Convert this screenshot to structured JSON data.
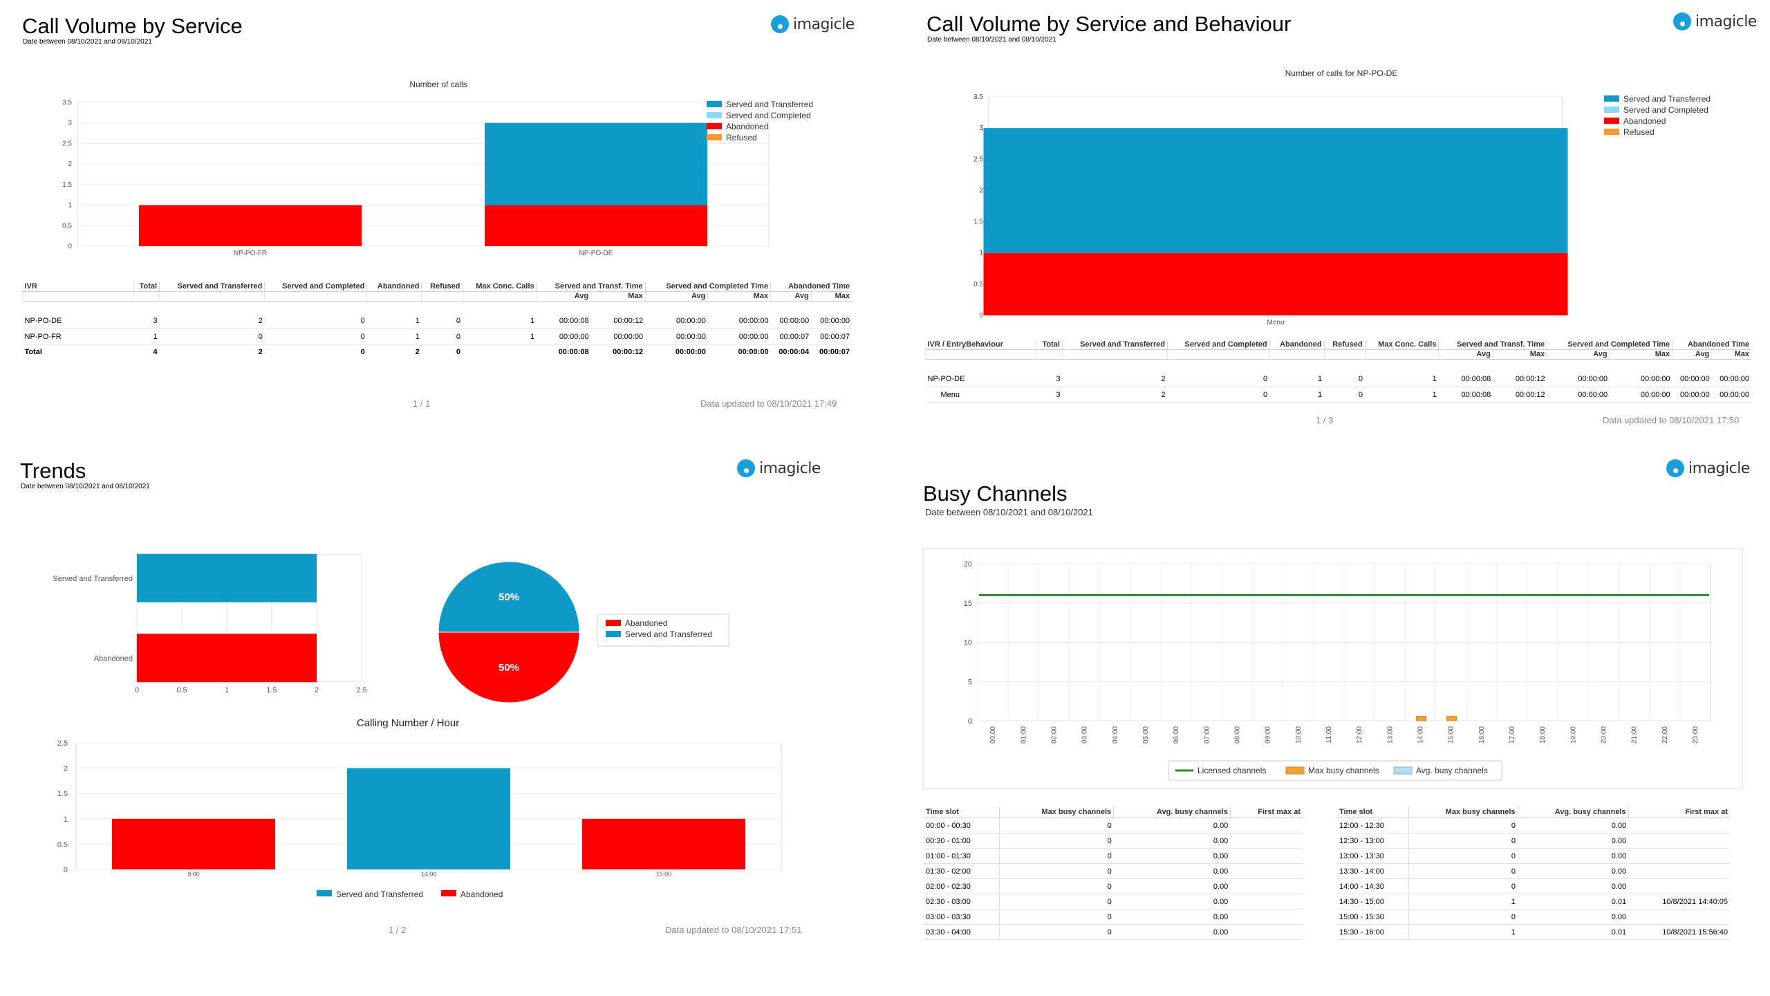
{
  "brand": "imagicle",
  "colors": {
    "served_transferred": "#0e99c7",
    "served_completed": "#8dd8f3",
    "abandoned": "#ff0000",
    "refused": "#ff9a2a",
    "licensed": "#228b22",
    "max_busy": "#f5a033",
    "avg_busy": "#b9dcf5"
  },
  "p1": {
    "title": "Call Volume by Service",
    "subtitle": "Date between 08/10/2021 and 08/10/2021",
    "legend": [
      "Served and Transferred",
      "Served and Completed",
      "Abandoned",
      "Refused"
    ],
    "table": {
      "headers": [
        "IVR",
        "Total",
        "Served and Transferred",
        "Served and Completed",
        "Abandoned",
        "Refused",
        "Max Conc. Calls",
        "Served and Transf. Time",
        "Served and Completed Time",
        "Abandoned Time"
      ],
      "sub": [
        "Avg",
        "Max",
        "Avg",
        "Max",
        "Avg",
        "Max"
      ],
      "rows": [
        [
          "NP-PO-DE",
          "3",
          "2",
          "0",
          "1",
          "0",
          "1",
          "00:00:08",
          "00:00:12",
          "00:00:00",
          "00:00:00",
          "00:00:00",
          "00:00:00"
        ],
        [
          "NP-PO-FR",
          "1",
          "0",
          "0",
          "1",
          "0",
          "1",
          "00:00:00",
          "00:00:00",
          "00:00:00",
          "00:00:00",
          "00:00:07",
          "00:00:07"
        ],
        [
          "Total",
          "4",
          "2",
          "0",
          "2",
          "0",
          "",
          "00:00:08",
          "00:00:12",
          "00:00:00",
          "00:00:00",
          "00:00:04",
          "00:00:07"
        ]
      ]
    },
    "page": "1 / 1",
    "updated": "Data updated to 08/10/2021 17:49"
  },
  "p2": {
    "title": "Call Volume by Service and Behaviour",
    "subtitle": "Date between 08/10/2021 and 08/10/2021",
    "legend": [
      "Served and Transferred",
      "Served and Completed",
      "Abandoned",
      "Refused"
    ],
    "table": {
      "headers": [
        "IVR / EntryBehaviour",
        "Total",
        "Served and Transferred",
        "Served and Completed",
        "Abandoned",
        "Refused",
        "Max Conc. Calls",
        "Served and Transf. Time",
        "Served and Completed Time",
        "Abandoned Time"
      ],
      "sub": [
        "Avg",
        "Max",
        "Avg",
        "Max",
        "Avg",
        "Max"
      ],
      "rows": [
        [
          "NP-PO-DE",
          "3",
          "2",
          "0",
          "1",
          "0",
          "1",
          "00:00:08",
          "00:00:12",
          "00:00:00",
          "00:00:00",
          "00:00:00",
          "00:00:00"
        ],
        [
          "Menu",
          "3",
          "2",
          "0",
          "1",
          "0",
          "1",
          "00:00:08",
          "00:00:12",
          "00:00:00",
          "00:00:00",
          "00:00:00",
          "00:00:00"
        ]
      ]
    },
    "page": "1 / 3",
    "updated": "Data updated to 08/10/2021 17:50"
  },
  "p3": {
    "title": "Trends",
    "subtitle": "Date between 08/10/2021 and 08/10/2021",
    "pie_legend": [
      "Abandoned",
      "Served and Transferred"
    ],
    "bottom_legend": [
      "Served and Transferred",
      "Abandoned"
    ],
    "page": "1 / 2",
    "updated": "Data updated to 08/10/2021 17:51"
  },
  "p4": {
    "title": "Busy Channels",
    "subtitle": "Date between 08/10/2021 and 08/10/2021",
    "legend": [
      "Licensed channels",
      "Max busy channels",
      "Avg. busy channels"
    ],
    "slot_headers": [
      "Time slot",
      "Max busy channels",
      "Avg. busy channels",
      "First max at"
    ],
    "slots_left": [
      [
        "00:00 - 00:30",
        "0",
        "0.00",
        ""
      ],
      [
        "00:30 - 01:00",
        "0",
        "0.00",
        ""
      ],
      [
        "01:00 - 01:30",
        "0",
        "0.00",
        ""
      ],
      [
        "01:30 - 02:00",
        "0",
        "0.00",
        ""
      ],
      [
        "02:00 - 02:30",
        "0",
        "0.00",
        ""
      ],
      [
        "02:30 - 03:00",
        "0",
        "0.00",
        ""
      ],
      [
        "03:00 - 03:30",
        "0",
        "0.00",
        ""
      ],
      [
        "03:30 - 04:00",
        "0",
        "0.00",
        ""
      ]
    ],
    "slots_right": [
      [
        "12:00 - 12:30",
        "0",
        "0.00",
        ""
      ],
      [
        "12:30 - 13:00",
        "0",
        "0.00",
        ""
      ],
      [
        "13:00 - 13:30",
        "0",
        "0.00",
        ""
      ],
      [
        "13:30 - 14:00",
        "0",
        "0.00",
        ""
      ],
      [
        "14:00 - 14:30",
        "0",
        "0.00",
        ""
      ],
      [
        "14:30 - 15:00",
        "1",
        "0.01",
        "10/8/2021 14:40:05"
      ],
      [
        "15:00 - 15:30",
        "0",
        "0.00",
        ""
      ],
      [
        "15:30 - 16:00",
        "1",
        "0.01",
        "10/8/2021 15:56:40"
      ]
    ]
  },
  "chart_data": [
    {
      "type": "bar",
      "stacked": true,
      "title": "Number of calls",
      "categories": [
        "NP-PO-FR",
        "NP-PO-DE"
      ],
      "series": [
        {
          "name": "Abandoned",
          "values": [
            1,
            1
          ]
        },
        {
          "name": "Served and Transferred",
          "values": [
            0,
            2
          ]
        },
        {
          "name": "Served and Completed",
          "values": [
            0,
            0
          ]
        },
        {
          "name": "Refused",
          "values": [
            0,
            0
          ]
        }
      ],
      "yticks": [
        "0",
        "0.5",
        "1",
        "1.5",
        "2",
        "2.5",
        "3",
        "3.5"
      ],
      "ylim": [
        0,
        3.5
      ],
      "legend": "right"
    },
    {
      "type": "bar",
      "stacked": true,
      "title": "Number of calls for NP-PO-DE",
      "categories": [
        "Menu"
      ],
      "series": [
        {
          "name": "Abandoned",
          "values": [
            1
          ]
        },
        {
          "name": "Served and Transferred",
          "values": [
            2
          ]
        },
        {
          "name": "Served and Completed",
          "values": [
            0
          ]
        },
        {
          "name": "Refused",
          "values": [
            0
          ]
        }
      ],
      "yticks": [
        "0",
        "0.5",
        "1",
        "1.5",
        "2",
        "2.5",
        "3",
        "3.5"
      ],
      "ylim": [
        0,
        3.5
      ],
      "legend": "right"
    },
    {
      "type": "bar",
      "orientation": "horizontal",
      "categories": [
        "Served and Transferred",
        "Abandoned"
      ],
      "values": [
        2,
        2
      ],
      "xticks": [
        "0",
        "0.5",
        "1",
        "1.5",
        "2",
        "2.5"
      ],
      "xlim": [
        0,
        2.5
      ]
    },
    {
      "type": "pie",
      "slices": [
        {
          "name": "Served and Transferred",
          "value": 50,
          "label": "50%"
        },
        {
          "name": "Abandoned",
          "value": 50,
          "label": "50%"
        }
      ],
      "legend": "right"
    },
    {
      "type": "bar",
      "title": "Calling Number / Hour",
      "categories": [
        "9:00",
        "14:00",
        "15:00"
      ],
      "series": [
        {
          "name": "Abandoned",
          "values": [
            1,
            0,
            1
          ]
        },
        {
          "name": "Served and Transferred",
          "values": [
            0,
            2,
            0
          ]
        }
      ],
      "yticks": [
        "0",
        "0.5",
        "1",
        "1.5",
        "2",
        "2.5"
      ],
      "ylim": [
        0,
        2.5
      ],
      "legend": "bottom"
    },
    {
      "type": "line",
      "categories": [
        "00:00",
        "01:00",
        "02:00",
        "03:00",
        "04:00",
        "05:00",
        "06:00",
        "07:00",
        "08:00",
        "09:00",
        "10:00",
        "11:00",
        "12:00",
        "13:00",
        "14:00",
        "15:00",
        "16:00",
        "17:00",
        "18:00",
        "19:00",
        "20:00",
        "21:00",
        "22:00",
        "23:00"
      ],
      "series": [
        {
          "name": "Licensed channels",
          "kind": "line",
          "value": 16
        },
        {
          "name": "Max busy channels",
          "kind": "bar",
          "points": [
            {
              "x": "14:30",
              "y": 1
            },
            {
              "x": "15:30",
              "y": 1
            }
          ]
        },
        {
          "name": "Avg. busy channels",
          "kind": "bar",
          "points": [
            {
              "x": "14:30",
              "y": 0.01
            },
            {
              "x": "15:30",
              "y": 0.01
            }
          ]
        }
      ],
      "yticks": [
        "0",
        "5",
        "10",
        "15",
        "20"
      ],
      "ylim": [
        0,
        20
      ],
      "legend": "bottom"
    }
  ]
}
